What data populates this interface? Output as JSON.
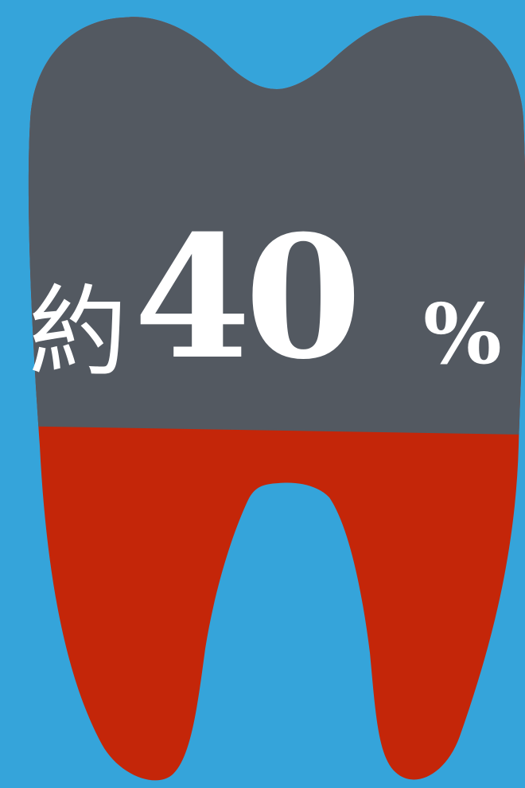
{
  "infographic": {
    "prefix": "約",
    "value": "40",
    "unit": "%",
    "value_fraction": 0.4
  },
  "colors": {
    "background": "#35a4da",
    "crown": "#535961",
    "root": "#c42609",
    "text": "#ffffff"
  },
  "icons": {
    "tooth": "tooth-icon"
  }
}
